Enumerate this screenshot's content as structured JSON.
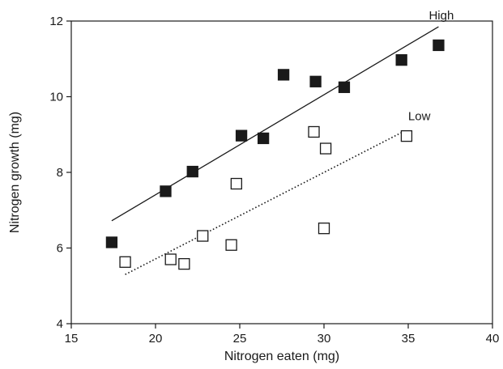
{
  "chart_data": {
    "type": "scatter",
    "xlabel": "Nitrogen eaten (mg)",
    "ylabel": "Nitrogen growth (mg)",
    "xlim": [
      15,
      40
    ],
    "ylim": [
      4,
      12
    ],
    "xticks": [
      "15",
      "20",
      "25",
      "30",
      "35",
      "40"
    ],
    "yticks": [
      "4",
      "6",
      "8",
      "10",
      "12"
    ],
    "grid": false,
    "series": [
      {
        "name": "High",
        "marker": "filled-square",
        "color": "#1a1a1a",
        "points": [
          [
            17.4,
            6.15
          ],
          [
            20.6,
            7.5
          ],
          [
            22.2,
            8.02
          ],
          [
            25.1,
            8.97
          ],
          [
            26.4,
            8.9
          ],
          [
            27.6,
            10.58
          ],
          [
            29.5,
            10.4
          ],
          [
            31.2,
            10.25
          ],
          [
            34.6,
            10.97
          ],
          [
            36.8,
            11.36
          ]
        ],
        "fit": {
          "style": "solid",
          "from": [
            17.4,
            6.72
          ],
          "to": [
            36.8,
            11.85
          ]
        }
      },
      {
        "name": "Low",
        "marker": "open-square",
        "color": "#1a1a1a",
        "points": [
          [
            18.2,
            5.63
          ],
          [
            20.9,
            5.7
          ],
          [
            21.7,
            5.58
          ],
          [
            22.8,
            6.32
          ],
          [
            24.5,
            6.08
          ],
          [
            24.8,
            7.7
          ],
          [
            29.4,
            9.07
          ],
          [
            30.0,
            6.52
          ],
          [
            30.1,
            8.63
          ],
          [
            34.9,
            8.96
          ]
        ],
        "fit": {
          "style": "dotted",
          "from": [
            18.2,
            5.3
          ],
          "to": [
            34.9,
            9.12
          ]
        }
      }
    ]
  }
}
